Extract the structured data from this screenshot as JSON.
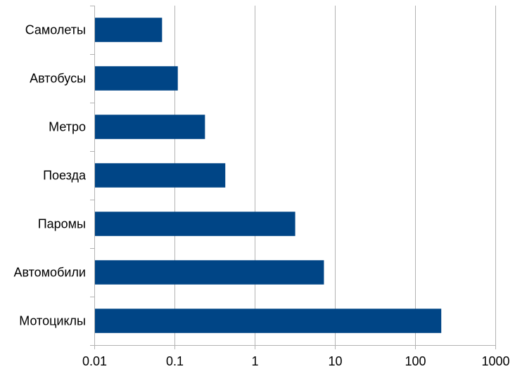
{
  "chart_data": {
    "type": "bar",
    "orientation": "horizontal",
    "categories": [
      "Самолеты",
      "Автобусы",
      "Метро",
      "Поезда",
      "Паромы",
      "Автомобили",
      "Мотоциклы"
    ],
    "values": [
      0.07,
      0.11,
      0.24,
      0.43,
      3.2,
      7.3,
      212
    ],
    "x_scale": "log",
    "xlim": [
      0.01,
      1000
    ],
    "x_ticks": [
      0.01,
      0.1,
      1,
      10,
      100,
      1000
    ],
    "x_tick_labels": [
      "0.01",
      "0.1",
      "1",
      "10",
      "100",
      "1000"
    ],
    "grid": "vertical",
    "legend": "none",
    "bar_color": "#004586",
    "title": "",
    "xlabel": "",
    "ylabel": ""
  }
}
